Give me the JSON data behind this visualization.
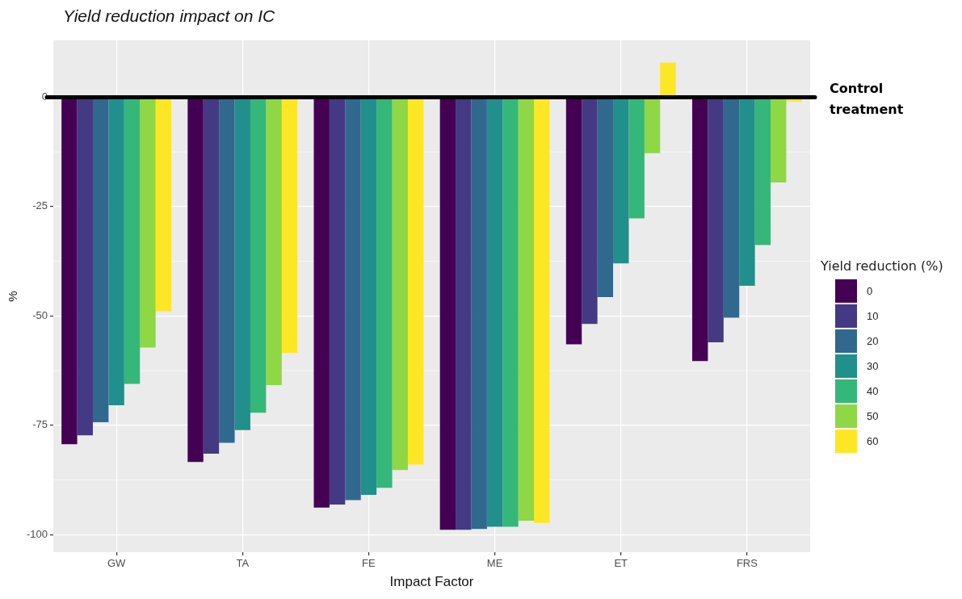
{
  "chart_data": {
    "type": "bar",
    "title": "Yield reduction impact on IC",
    "xlabel": "Impact Factor",
    "ylabel": "%",
    "legend_title": "Yield reduction (%)",
    "categories": [
      "GW",
      "TA",
      "FE",
      "ME",
      "ET",
      "FRS"
    ],
    "series": [
      {
        "name": "0",
        "color": "#440154",
        "values": [
          -79.3,
          -83.4,
          -93.8,
          -98.9,
          -56.5,
          -60.3
        ]
      },
      {
        "name": "10",
        "color": "#443a83",
        "values": [
          -77.3,
          -81.5,
          -93.1,
          -98.9,
          -51.8,
          -56
        ]
      },
      {
        "name": "20",
        "color": "#31688e",
        "values": [
          -74.3,
          -79,
          -92.1,
          -98.7,
          -45.7,
          -50.4
        ]
      },
      {
        "name": "30",
        "color": "#21908c",
        "values": [
          -70.4,
          -76.1,
          -90.9,
          -98.2,
          -38,
          -43.1
        ]
      },
      {
        "name": "40",
        "color": "#35b779",
        "values": [
          -65.5,
          -72.1,
          -89.3,
          -98.2,
          -27.7,
          -33.8
        ]
      },
      {
        "name": "50",
        "color": "#8fd744",
        "values": [
          -57.2,
          -65.8,
          -85.2,
          -96.8,
          -12.8,
          -19.5
        ]
      },
      {
        "name": "60",
        "color": "#fde725",
        "values": [
          -48.9,
          -58.4,
          -84,
          -97.3,
          7.9,
          -1
        ]
      }
    ],
    "ylim": [
      -104,
      13
    ],
    "yticks": [
      -100,
      -75,
      -50,
      -25,
      0
    ],
    "grid": true,
    "legend": "right",
    "ref_lines": [
      {
        "axis": "y",
        "value": 0,
        "label": "Control treatment",
        "color": "#000000"
      }
    ]
  }
}
